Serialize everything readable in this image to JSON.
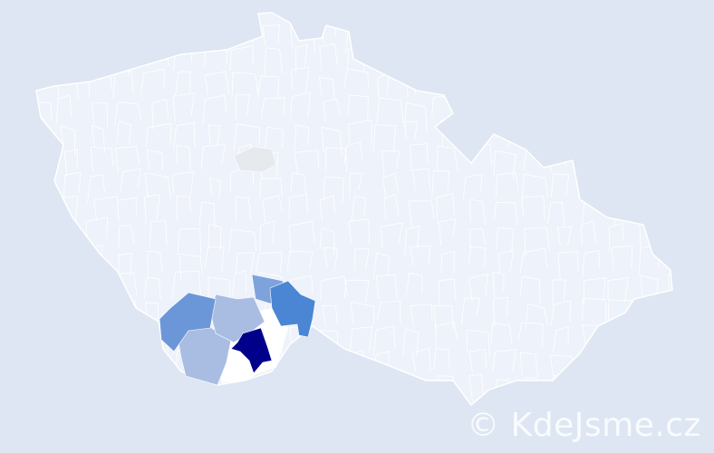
{
  "watermark": "© KdeJsme.cz",
  "colors": {
    "background": "#dde6f2",
    "country_fill": "#eef2fa",
    "border": "#ffffff",
    "level_max": "#00008b",
    "level_high": "#4a86d4",
    "level_mid": "#6b97d8",
    "level_midlow": "#7ea3dc",
    "level_low": "#a9bde3",
    "level_none_highlight": "#ffffff",
    "level_grey": "#e6e9ee"
  },
  "regions": [
    {
      "id": "region-darkest",
      "level": "level_max"
    },
    {
      "id": "region-blue",
      "level": "level_high"
    },
    {
      "id": "region-mid-west",
      "level": "level_mid"
    },
    {
      "id": "region-mid-north",
      "level": "level_midlow"
    },
    {
      "id": "region-light-south",
      "level": "level_low"
    },
    {
      "id": "region-light-center",
      "level": "level_low"
    },
    {
      "id": "region-white",
      "level": "level_none_highlight"
    },
    {
      "id": "region-grey",
      "level": "level_grey"
    }
  ]
}
